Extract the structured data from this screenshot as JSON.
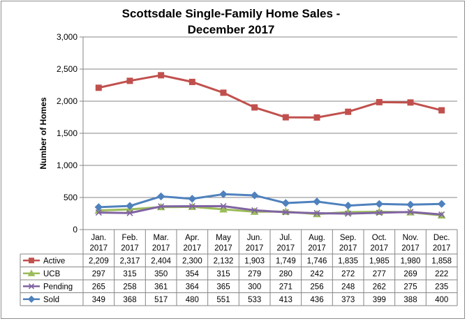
{
  "chart_data": {
    "type": "line",
    "title_line1": "Scottsdale Single-Family Home Sales -",
    "title_line2": "December 2017",
    "ylabel": "Number of Homes",
    "xlabel": "",
    "ylim": [
      0,
      3000
    ],
    "yticks": [
      0,
      500,
      1000,
      1500,
      2000,
      2500,
      3000
    ],
    "ytick_labels": [
      "0",
      "500",
      "1,000",
      "1,500",
      "2,000",
      "2,500",
      "3,000"
    ],
    "categories": [
      [
        "Jan.",
        "2017"
      ],
      [
        "Feb.",
        "2017"
      ],
      [
        "Mar.",
        "2017"
      ],
      [
        "Apr.",
        "2017"
      ],
      [
        "May",
        "2017"
      ],
      [
        "Jun.",
        "2017"
      ],
      [
        "Jul.",
        "2017"
      ],
      [
        "Aug.",
        "2017"
      ],
      [
        "Sep.",
        "2017"
      ],
      [
        "Oct.",
        "2017"
      ],
      [
        "Nov.",
        "2017"
      ],
      [
        "Dec.",
        "2017"
      ]
    ],
    "grid": true,
    "legend": "data-table",
    "series": [
      {
        "name": "Active",
        "color": "#c0504d",
        "marker": "square",
        "values": [
          2209,
          2317,
          2404,
          2300,
          2132,
          1903,
          1749,
          1746,
          1835,
          1985,
          1980,
          1858
        ],
        "labels": [
          "2,209",
          "2,317",
          "2,404",
          "2,300",
          "2,132",
          "1,903",
          "1,749",
          "1,746",
          "1,835",
          "1,985",
          "1,980",
          "1,858"
        ]
      },
      {
        "name": "UCB",
        "color": "#9bbb59",
        "marker": "triangle",
        "values": [
          297,
          315,
          350,
          354,
          315,
          279,
          280,
          242,
          272,
          277,
          269,
          222
        ],
        "labels": [
          "297",
          "315",
          "350",
          "354",
          "315",
          "279",
          "280",
          "242",
          "272",
          "277",
          "269",
          "222"
        ]
      },
      {
        "name": "Pending",
        "color": "#8064a2",
        "marker": "x",
        "values": [
          265,
          258,
          361,
          364,
          365,
          300,
          271,
          256,
          248,
          262,
          275,
          235
        ],
        "labels": [
          "265",
          "258",
          "361",
          "364",
          "365",
          "300",
          "271",
          "256",
          "248",
          "262",
          "275",
          "235"
        ]
      },
      {
        "name": "Sold",
        "color": "#4f81bd",
        "marker": "diamond",
        "values": [
          349,
          368,
          517,
          480,
          551,
          533,
          413,
          436,
          373,
          399,
          388,
          400
        ],
        "labels": [
          "349",
          "368",
          "517",
          "480",
          "551",
          "533",
          "413",
          "436",
          "373",
          "399",
          "388",
          "400"
        ]
      }
    ]
  }
}
